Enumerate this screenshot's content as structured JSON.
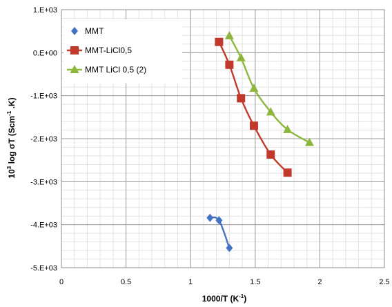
{
  "chart_data": {
    "type": "scatter",
    "xlabel": {
      "base": "1000/T (K",
      "sup": "-1",
      "end": ")"
    },
    "ylabel": {
      "pre": "10",
      "sup1": "3",
      "mid": " log σT (Scm",
      "sup2": "-1",
      "end": " .K)"
    },
    "xlim": [
      0,
      2.5
    ],
    "ylim": [
      -5000,
      1000
    ],
    "x_ticks": [
      {
        "value": 0,
        "label": "0"
      },
      {
        "value": 0.5,
        "label": "0.5"
      },
      {
        "value": 1,
        "label": "1"
      },
      {
        "value": 1.5,
        "label": "1.5"
      },
      {
        "value": 2,
        "label": "2"
      },
      {
        "value": 2.5,
        "label": "2.5"
      }
    ],
    "y_ticks": [
      {
        "value": 1000,
        "label": "1.E+03"
      },
      {
        "value": 0,
        "label": "0.E+00"
      },
      {
        "value": -1000,
        "label": "-1.E+03"
      },
      {
        "value": -2000,
        "label": "-2.E+03"
      },
      {
        "value": -3000,
        "label": "-3.E+03"
      },
      {
        "value": -4000,
        "label": "-4.E+03"
      },
      {
        "value": -5000,
        "label": "-5.E+03"
      }
    ],
    "grid": true,
    "legend_position": "top-left",
    "series": [
      {
        "name": "MMT",
        "color": "#4472C4",
        "marker": "diamond",
        "points": [
          [
            1.15,
            -3840
          ],
          [
            1.22,
            -3900
          ],
          [
            1.3,
            -4540
          ]
        ]
      },
      {
        "name": "MMT-LiCl0,5",
        "color": "#C0392B",
        "marker": "square",
        "points": [
          [
            1.22,
            250
          ],
          [
            1.3,
            -280
          ],
          [
            1.39,
            -1060
          ],
          [
            1.49,
            -1700
          ],
          [
            1.62,
            -2370
          ],
          [
            1.75,
            -2790
          ]
        ]
      },
      {
        "name": "MMT LiCl 0,5 (2)",
        "color": "#8DB63C",
        "marker": "triangle",
        "points": [
          [
            1.3,
            390
          ],
          [
            1.39,
            -120
          ],
          [
            1.49,
            -830
          ],
          [
            1.62,
            -1380
          ],
          [
            1.75,
            -1790
          ],
          [
            1.92,
            -2090
          ]
        ]
      }
    ]
  }
}
